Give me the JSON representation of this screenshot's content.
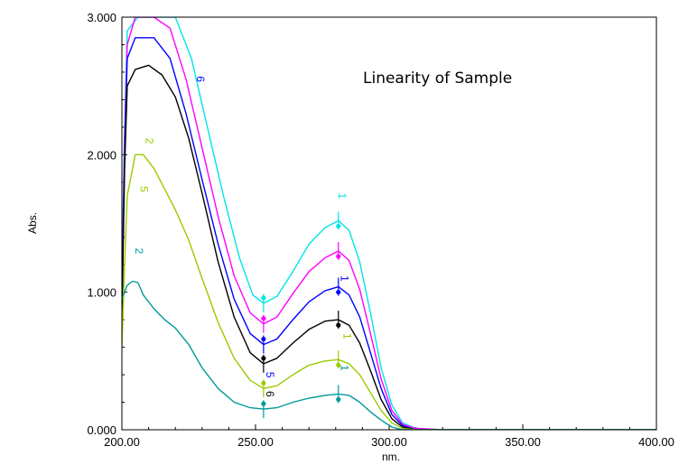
{
  "chart_data": {
    "type": "line",
    "title": "Linearity of Sample",
    "xlabel": "nm.",
    "ylabel": "Abs.",
    "xlim": [
      200,
      400
    ],
    "ylim": [
      0,
      3
    ],
    "x_ticks": [
      "200.00",
      "250.00",
      "300.00",
      "350.00",
      "400.00"
    ],
    "y_ticks": [
      "0.000",
      "1.000",
      "2.000",
      "3.000"
    ],
    "grid": false,
    "legend": "none",
    "series": [
      {
        "color": "#00e5e5",
        "points": [
          [
            200,
            1.1
          ],
          [
            201,
            2.2
          ],
          [
            202,
            2.9
          ],
          [
            206,
            3.0
          ],
          [
            215,
            3.0
          ],
          [
            220,
            3.0
          ],
          [
            226,
            2.7
          ],
          [
            232,
            2.2
          ],
          [
            238,
            1.7
          ],
          [
            244,
            1.25
          ],
          [
            249,
            0.98
          ],
          [
            253,
            0.92
          ],
          [
            258,
            0.97
          ],
          [
            264,
            1.15
          ],
          [
            270,
            1.35
          ],
          [
            276,
            1.47
          ],
          [
            281,
            1.52
          ],
          [
            285,
            1.45
          ],
          [
            289,
            1.22
          ],
          [
            293,
            0.85
          ],
          [
            297,
            0.45
          ],
          [
            301,
            0.18
          ],
          [
            305,
            0.05
          ],
          [
            310,
            0.01
          ],
          [
            320,
            0.0
          ],
          [
            400,
            0.0
          ]
        ]
      },
      {
        "color": "#ff00ff",
        "points": [
          [
            200,
            1.0
          ],
          [
            201,
            2.1
          ],
          [
            202,
            2.8
          ],
          [
            205,
            3.0
          ],
          [
            212,
            3.0
          ],
          [
            218,
            2.92
          ],
          [
            224,
            2.55
          ],
          [
            230,
            2.05
          ],
          [
            236,
            1.55
          ],
          [
            242,
            1.12
          ],
          [
            248,
            0.85
          ],
          [
            253,
            0.77
          ],
          [
            258,
            0.82
          ],
          [
            264,
            0.99
          ],
          [
            270,
            1.15
          ],
          [
            276,
            1.25
          ],
          [
            281,
            1.3
          ],
          [
            285,
            1.23
          ],
          [
            289,
            1.02
          ],
          [
            293,
            0.7
          ],
          [
            297,
            0.37
          ],
          [
            301,
            0.14
          ],
          [
            305,
            0.04
          ],
          [
            310,
            0.01
          ],
          [
            320,
            0.0
          ],
          [
            400,
            0.0
          ]
        ]
      },
      {
        "color": "#0000ff",
        "points": [
          [
            200,
            0.9
          ],
          [
            201,
            2.0
          ],
          [
            202,
            2.7
          ],
          [
            205,
            2.85
          ],
          [
            212,
            2.85
          ],
          [
            218,
            2.7
          ],
          [
            224,
            2.3
          ],
          [
            230,
            1.82
          ],
          [
            236,
            1.35
          ],
          [
            242,
            0.95
          ],
          [
            248,
            0.7
          ],
          [
            253,
            0.62
          ],
          [
            258,
            0.66
          ],
          [
            264,
            0.8
          ],
          [
            270,
            0.93
          ],
          [
            276,
            1.01
          ],
          [
            281,
            1.04
          ],
          [
            285,
            0.98
          ],
          [
            289,
            0.82
          ],
          [
            293,
            0.56
          ],
          [
            297,
            0.3
          ],
          [
            301,
            0.11
          ],
          [
            305,
            0.03
          ],
          [
            310,
            0.0
          ],
          [
            400,
            0.0
          ]
        ]
      },
      {
        "color": "#000000",
        "points": [
          [
            200,
            0.8
          ],
          [
            201,
            1.9
          ],
          [
            202,
            2.5
          ],
          [
            205,
            2.62
          ],
          [
            210,
            2.65
          ],
          [
            215,
            2.58
          ],
          [
            220,
            2.42
          ],
          [
            225,
            2.12
          ],
          [
            230,
            1.72
          ],
          [
            236,
            1.22
          ],
          [
            242,
            0.82
          ],
          [
            248,
            0.56
          ],
          [
            253,
            0.48
          ],
          [
            258,
            0.52
          ],
          [
            264,
            0.63
          ],
          [
            270,
            0.73
          ],
          [
            276,
            0.79
          ],
          [
            281,
            0.8
          ],
          [
            285,
            0.76
          ],
          [
            289,
            0.63
          ],
          [
            293,
            0.43
          ],
          [
            297,
            0.22
          ],
          [
            301,
            0.08
          ],
          [
            305,
            0.02
          ],
          [
            310,
            0.0
          ],
          [
            400,
            0.0
          ]
        ]
      },
      {
        "color": "#99cc00",
        "points": [
          [
            200,
            0.6
          ],
          [
            201,
            1.2
          ],
          [
            202,
            1.7
          ],
          [
            205,
            2.0
          ],
          [
            208,
            2.0
          ],
          [
            212,
            1.9
          ],
          [
            216,
            1.75
          ],
          [
            220,
            1.6
          ],
          [
            225,
            1.38
          ],
          [
            230,
            1.1
          ],
          [
            236,
            0.78
          ],
          [
            242,
            0.52
          ],
          [
            248,
            0.36
          ],
          [
            253,
            0.3
          ],
          [
            258,
            0.32
          ],
          [
            264,
            0.4
          ],
          [
            270,
            0.47
          ],
          [
            276,
            0.5
          ],
          [
            281,
            0.51
          ],
          [
            285,
            0.48
          ],
          [
            289,
            0.4
          ],
          [
            293,
            0.27
          ],
          [
            297,
            0.14
          ],
          [
            301,
            0.05
          ],
          [
            305,
            0.01
          ],
          [
            310,
            0.0
          ],
          [
            400,
            0.0
          ]
        ]
      },
      {
        "color": "#009999",
        "points": [
          [
            200,
            0.95
          ],
          [
            202,
            1.05
          ],
          [
            204,
            1.08
          ],
          [
            206,
            1.07
          ],
          [
            208,
            0.98
          ],
          [
            212,
            0.88
          ],
          [
            216,
            0.8
          ],
          [
            220,
            0.74
          ],
          [
            225,
            0.62
          ],
          [
            230,
            0.45
          ],
          [
            236,
            0.3
          ],
          [
            242,
            0.2
          ],
          [
            248,
            0.16
          ],
          [
            253,
            0.15
          ],
          [
            258,
            0.16
          ],
          [
            264,
            0.2
          ],
          [
            270,
            0.23
          ],
          [
            276,
            0.25
          ],
          [
            281,
            0.26
          ],
          [
            285,
            0.25
          ],
          [
            289,
            0.2
          ],
          [
            293,
            0.13
          ],
          [
            297,
            0.07
          ],
          [
            301,
            0.02
          ],
          [
            305,
            0.0
          ],
          [
            400,
            0.0
          ]
        ]
      }
    ],
    "peak_labels": [
      {
        "text": "1",
        "x": 281,
        "y": 1.7,
        "color": "#00e5e5"
      },
      {
        "text": "1",
        "x": 282,
        "y": 1.1,
        "color": "#0000ff"
      },
      {
        "text": "1",
        "x": 283,
        "y": 0.68,
        "color": "#99cc00"
      },
      {
        "text": "1",
        "x": 282,
        "y": 0.45,
        "color": "#009999"
      },
      {
        "text": "6",
        "x": 228,
        "y": 2.55,
        "color": "#0000ff"
      },
      {
        "text": "2",
        "x": 209,
        "y": 2.1,
        "color": "#99cc00"
      },
      {
        "text": "5",
        "x": 207,
        "y": 1.75,
        "color": "#99cc00"
      },
      {
        "text": "2",
        "x": 205,
        "y": 1.3,
        "color": "#009999"
      },
      {
        "text": "5",
        "x": 254,
        "y": 0.4,
        "color": "#0000ff"
      },
      {
        "text": "6",
        "x": 254,
        "y": 0.26,
        "color": "#000000"
      }
    ]
  }
}
